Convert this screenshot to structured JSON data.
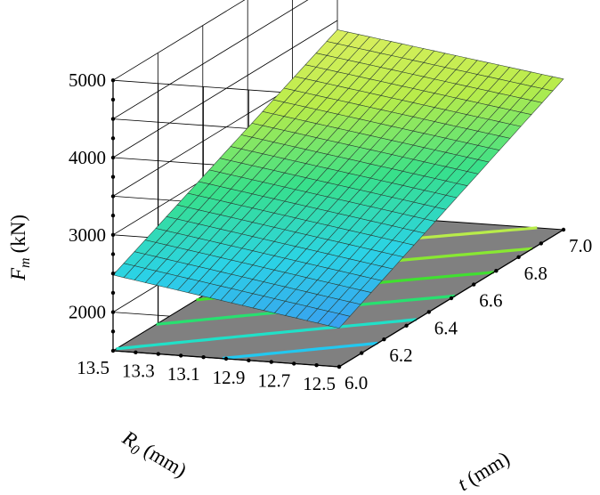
{
  "chart_data": {
    "type": "surface3d",
    "zlabel": "F_m (kN)",
    "zlabel_parts": {
      "var": "F",
      "sub": "m",
      "unit": "(kN)"
    },
    "xlabel": "t (mm)",
    "xlabel_parts": {
      "var": "t",
      "unit": " (mm)"
    },
    "ylabel": "R0 (mm)",
    "ylabel_parts": {
      "var": "R",
      "sub": "0",
      "unit": " (mm)"
    },
    "x_ticks": [
      "6.0",
      "6.2",
      "6.4",
      "6.6",
      "6.8",
      "7.0"
    ],
    "y_ticks": [
      "13.5",
      "13.3",
      "13.1",
      "12.9",
      "12.7",
      "12.5"
    ],
    "z_ticks": [
      "2000",
      "3000",
      "4000",
      "5000"
    ],
    "x_range": [
      6.0,
      7.0
    ],
    "y_range": [
      12.5,
      13.5
    ],
    "z_range": [
      1500,
      5000
    ],
    "grid": true,
    "mesh_resolution": 21,
    "corner_values": [
      {
        "t": 6.0,
        "R0": 13.5,
        "Fm": 2480
      },
      {
        "t": 6.0,
        "R0": 12.5,
        "Fm": 2000
      },
      {
        "t": 7.0,
        "R0": 12.5,
        "Fm": 3450
      },
      {
        "t": 7.0,
        "R0": 13.5,
        "Fm": 3880
      }
    ],
    "colormap": [
      "#3a9df0",
      "#2bd3e6",
      "#38e08a",
      "#b8ec4a",
      "#dcef60"
    ],
    "floor_color": "#808080",
    "contour_levels": [
      2250,
      2500,
      2750,
      3000,
      3250,
      3500
    ],
    "contour_colors": [
      "#22c8f0",
      "#20e0c8",
      "#28e070",
      "#40e030",
      "#88e832",
      "#b8ec4a"
    ]
  }
}
